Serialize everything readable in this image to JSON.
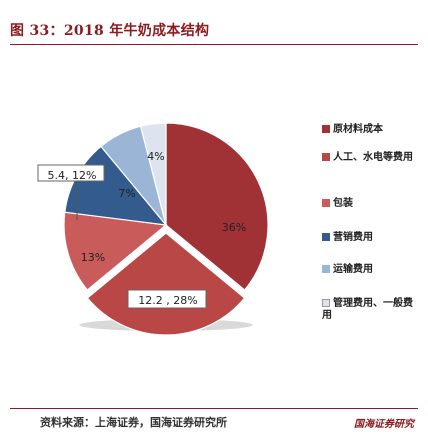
{
  "header": {
    "title": "图 33：2018 年牛奶成本结构"
  },
  "chart_data": {
    "type": "pie",
    "slices": [
      {
        "label": "原材料成本",
        "value": 36,
        "display": "36%",
        "color": "#a03236"
      },
      {
        "label": "人工、水电等费用",
        "value": 28,
        "display": "12.2 , 28%",
        "color": "#b94746"
      },
      {
        "label": "包装",
        "value": 13,
        "display": "13%",
        "color": "#c95b5a"
      },
      {
        "label": "营销费用",
        "value": 12,
        "display": "5.4, 12%",
        "color": "#345b8e"
      },
      {
        "label": "运输费用",
        "value": 7,
        "display": "7%",
        "color": "#9bb5d6"
      },
      {
        "label": "管理费用、一般费用",
        "value": 4,
        "display": "4%",
        "color": "#dde4ef"
      }
    ],
    "legend_position": "right"
  },
  "legend": {
    "items": [
      {
        "label": "原材料成本"
      },
      {
        "label": "人工、水电等费用"
      },
      {
        "label": "包装"
      },
      {
        "label": "营销费用"
      },
      {
        "label": "运输费用"
      },
      {
        "label": "管理费用、一般费用"
      }
    ]
  },
  "footer": {
    "source": "资料来源：上海证券，国海证券研究所",
    "brand": "国海证券研究"
  }
}
